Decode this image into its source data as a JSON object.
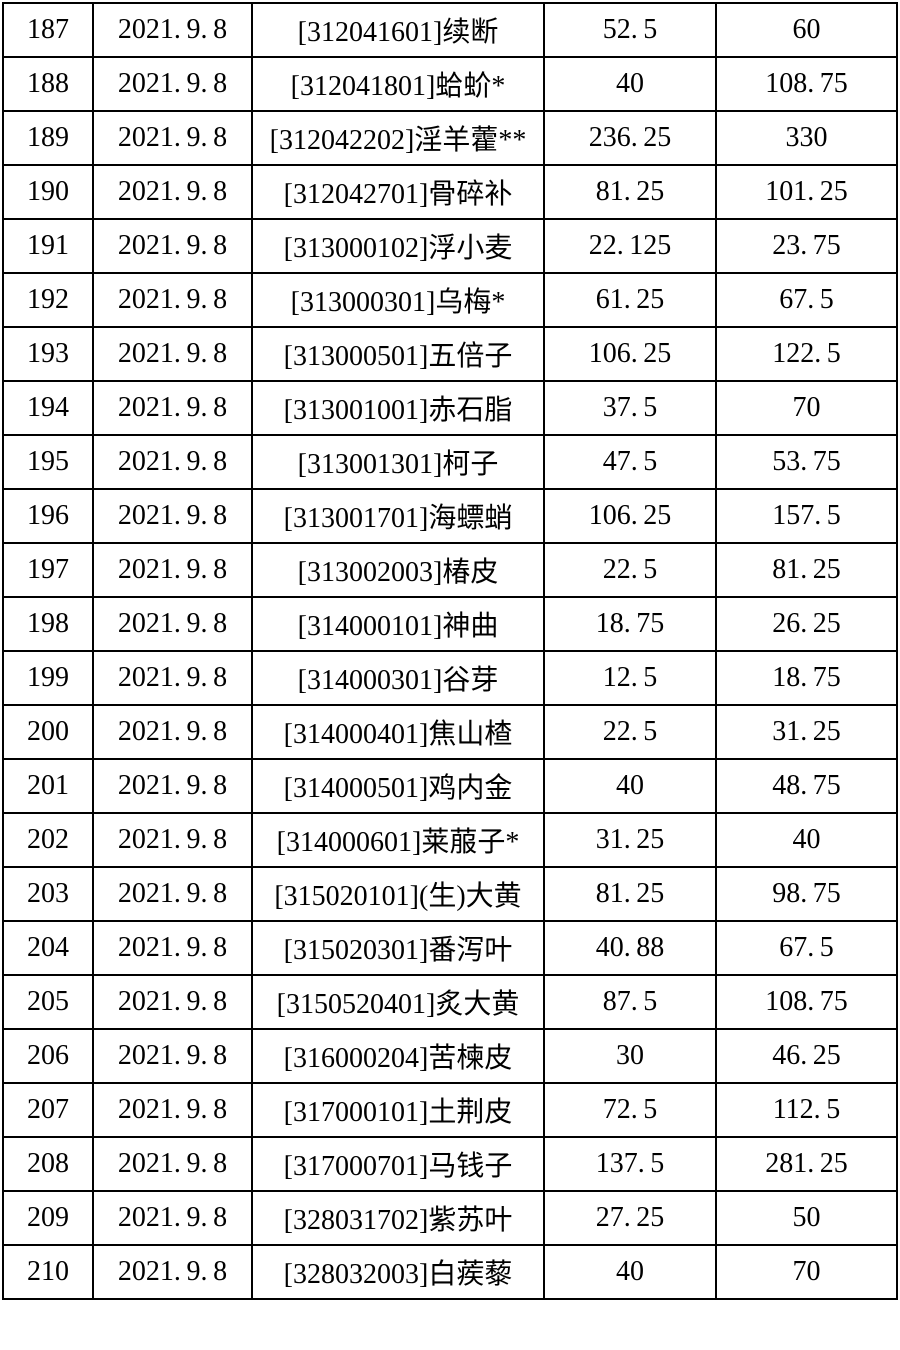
{
  "page": {
    "background_color": "#ffffff",
    "border_color": "#000000",
    "text_color": "#000000"
  },
  "table": {
    "rows": [
      {
        "no": "187",
        "date": "2021.9.8",
        "item": "[312041601]续断",
        "value1": "52.5",
        "value2": "60"
      },
      {
        "no": "188",
        "date": "2021.9.8",
        "item": "[312041801]蛤蚧*",
        "value1": "40",
        "value2": "108.75"
      },
      {
        "no": "189",
        "date": "2021.9.8",
        "item": "[312042202]淫羊藿**",
        "value1": "236.25",
        "value2": "330"
      },
      {
        "no": "190",
        "date": "2021.9.8",
        "item": "[312042701]骨碎补",
        "value1": "81.25",
        "value2": "101.25"
      },
      {
        "no": "191",
        "date": "2021.9.8",
        "item": "[313000102]浮小麦",
        "value1": "22.125",
        "value2": "23.75"
      },
      {
        "no": "192",
        "date": "2021.9.8",
        "item": "[313000301]乌梅*",
        "value1": "61.25",
        "value2": "67.5"
      },
      {
        "no": "193",
        "date": "2021.9.8",
        "item": "[313000501]五倍子",
        "value1": "106.25",
        "value2": "122.5"
      },
      {
        "no": "194",
        "date": "2021.9.8",
        "item": "[313001001]赤石脂",
        "value1": "37.5",
        "value2": "70"
      },
      {
        "no": "195",
        "date": "2021.9.8",
        "item": "[313001301]柯子",
        "value1": "47.5",
        "value2": "53.75"
      },
      {
        "no": "196",
        "date": "2021.9.8",
        "item": "[313001701]海螵蛸",
        "value1": "106.25",
        "value2": "157.5"
      },
      {
        "no": "197",
        "date": "2021.9.8",
        "item": "[313002003]椿皮",
        "value1": "22.5",
        "value2": "81.25"
      },
      {
        "no": "198",
        "date": "2021.9.8",
        "item": "[314000101]神曲",
        "value1": "18.75",
        "value2": "26.25"
      },
      {
        "no": "199",
        "date": "2021.9.8",
        "item": "[314000301]谷芽",
        "value1": "12.5",
        "value2": "18.75"
      },
      {
        "no": "200",
        "date": "2021.9.8",
        "item": "[314000401]焦山楂",
        "value1": "22.5",
        "value2": "31.25"
      },
      {
        "no": "201",
        "date": "2021.9.8",
        "item": "[314000501]鸡内金",
        "value1": "40",
        "value2": "48.75"
      },
      {
        "no": "202",
        "date": "2021.9.8",
        "item": "[314000601]莱菔子*",
        "value1": "31.25",
        "value2": "40"
      },
      {
        "no": "203",
        "date": "2021.9.8",
        "item": "[315020101](生)大黄",
        "value1": "81.25",
        "value2": "98.75"
      },
      {
        "no": "204",
        "date": "2021.9.8",
        "item": "[315020301]番泻叶",
        "value1": "40.88",
        "value2": "67.5"
      },
      {
        "no": "205",
        "date": "2021.9.8",
        "item": "[3150520401]炙大黄",
        "value1": "87.5",
        "value2": "108.75"
      },
      {
        "no": "206",
        "date": "2021.9.8",
        "item": "[316000204]苦楝皮",
        "value1": "30",
        "value2": "46.25"
      },
      {
        "no": "207",
        "date": "2021.9.8",
        "item": "[317000101]土荆皮",
        "value1": "72.5",
        "value2": "112.5"
      },
      {
        "no": "208",
        "date": "2021.9.8",
        "item": "[317000701]马钱子",
        "value1": "137.5",
        "value2": "281.25"
      },
      {
        "no": "209",
        "date": "2021.9.8",
        "item": "[328031702]紫苏叶",
        "value1": "27.25",
        "value2": "50"
      },
      {
        "no": "210",
        "date": "2021.9.8",
        "item": "[328032003]白蒺藜",
        "value1": "40",
        "value2": "70"
      }
    ]
  }
}
